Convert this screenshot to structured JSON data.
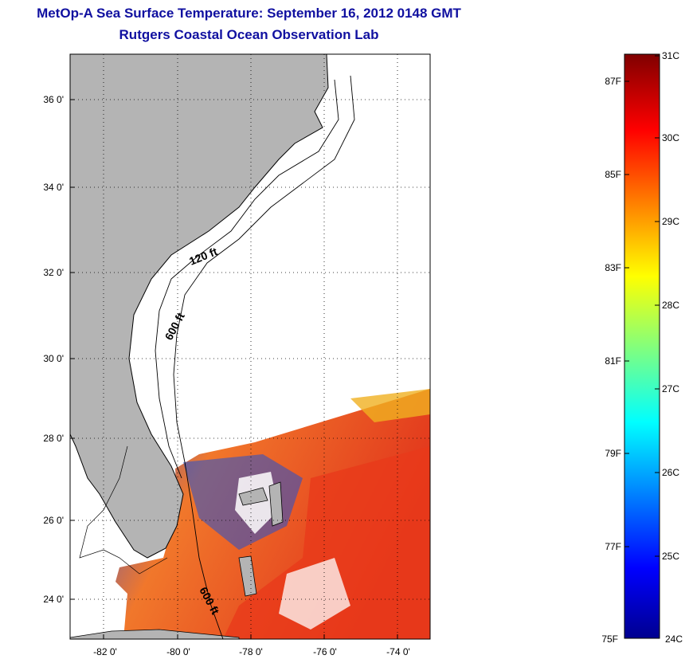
{
  "header": {
    "title": "MetOp-A Sea Surface Temperature:  September 16, 2012 0148 GMT",
    "subtitle": "Rutgers Coastal Ocean Observation Lab"
  },
  "map": {
    "lon_ticks": [
      "-82 0'",
      "-80 0'",
      "-78 0'",
      "-76 0'",
      "-74 0'"
    ],
    "lat_ticks": [
      "36 0'",
      "34 0'",
      "32 0'",
      "30 0'",
      "28 0'",
      "26 0'",
      "24 0'"
    ],
    "depth_labels": [
      "120 ft",
      "600 ft",
      "600 ft"
    ],
    "land_color": "#b4b4b4",
    "ocean_color": "#ffffff",
    "grid": true
  },
  "colorbar": {
    "celsius_labels": [
      "31C",
      "30C",
      "29C",
      "28C",
      "27C",
      "26C",
      "25C",
      "24C"
    ],
    "fahrenheit_labels": [
      "87F",
      "85F",
      "83F",
      "81F",
      "79F",
      "77F",
      "75F"
    ],
    "range_c": [
      24,
      31
    ],
    "colormap": "jet"
  }
}
